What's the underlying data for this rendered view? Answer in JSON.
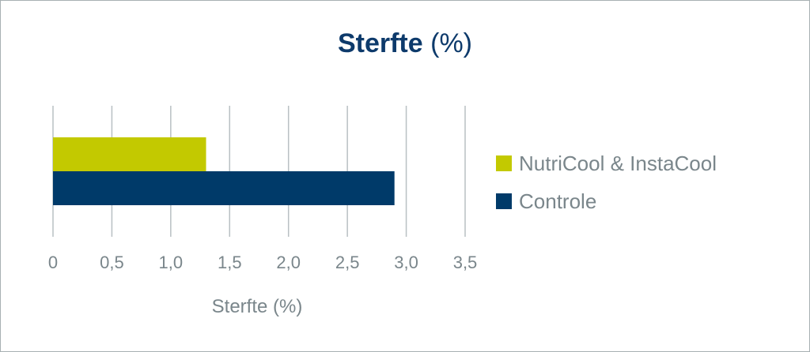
{
  "chart_data": {
    "type": "bar",
    "orientation": "horizontal",
    "title": "Sterfte",
    "title_unit": "(%)",
    "xlabel": "Sterfte (%)",
    "ylabel": "",
    "xlim": [
      0,
      3.5
    ],
    "x_ticks": [
      "0",
      "0,5",
      "1,0",
      "1,5",
      "2,0",
      "2,5",
      "3,0",
      "3,5"
    ],
    "x_tick_values": [
      0,
      0.5,
      1.0,
      1.5,
      2.0,
      2.5,
      3.0,
      3.5
    ],
    "grid": "vertical",
    "legend_position": "right",
    "series": [
      {
        "name": "NutriCool & InstaCool",
        "values": [
          1.3
        ],
        "color": "#c3c900"
      },
      {
        "name": "Controle",
        "values": [
          2.9
        ],
        "color": "#003a69"
      }
    ]
  }
}
